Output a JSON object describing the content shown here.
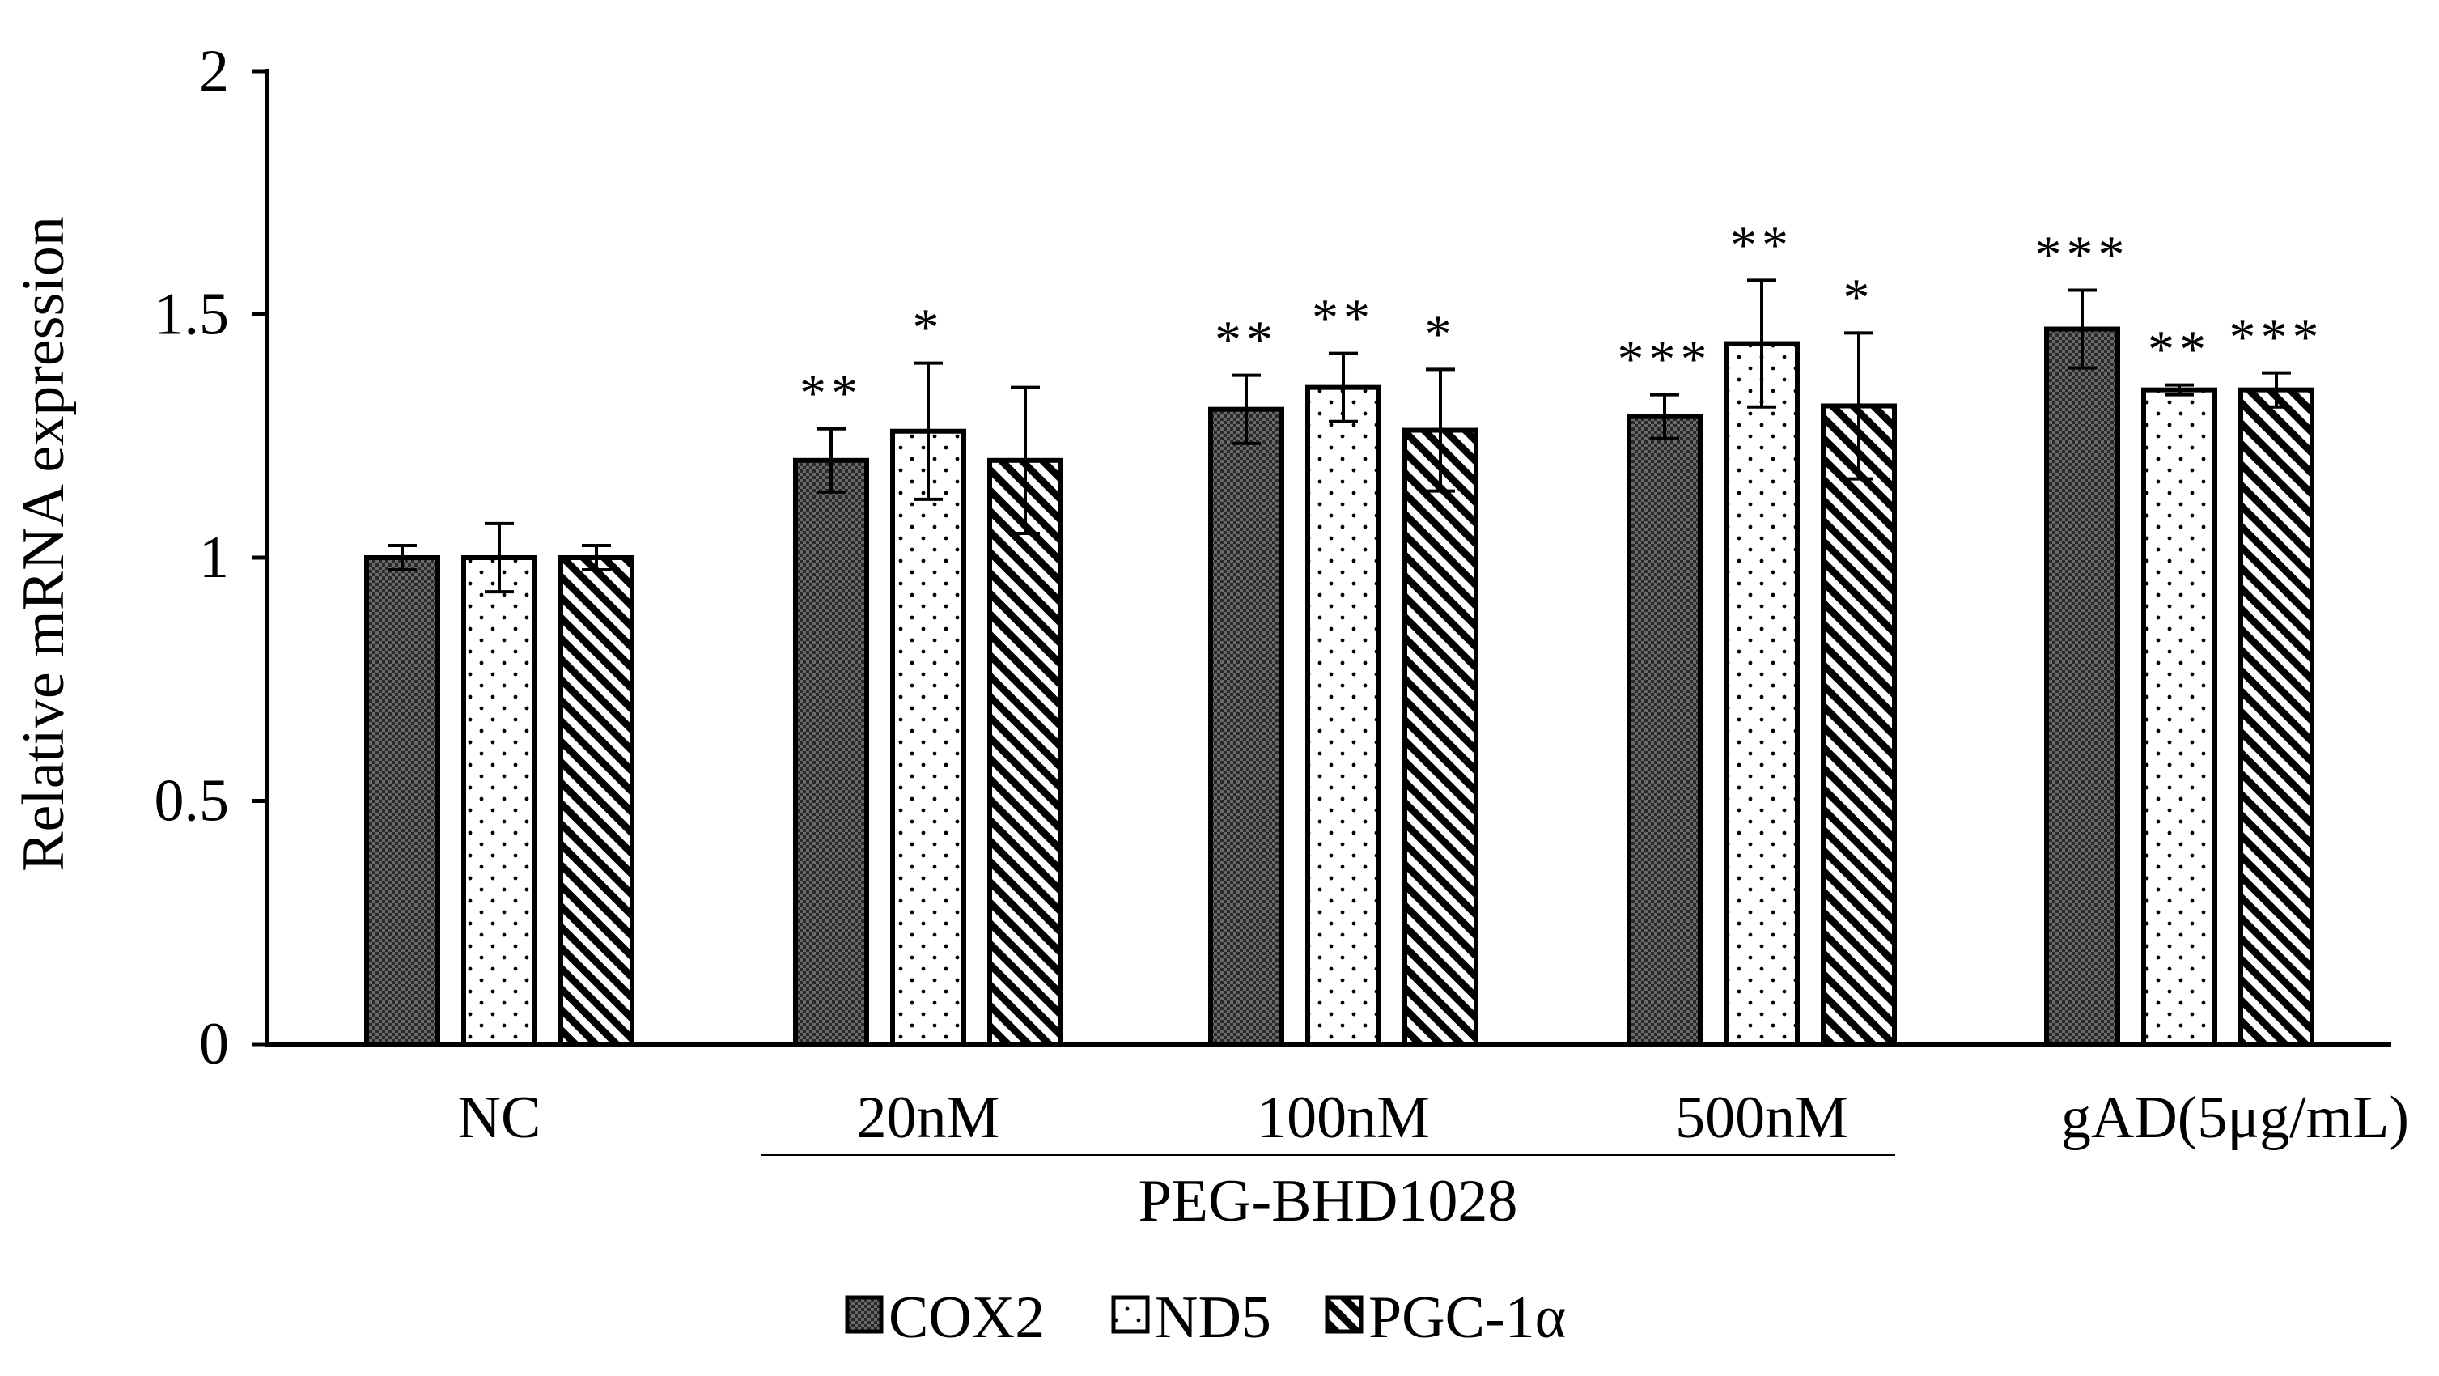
{
  "chart_data": {
    "type": "bar",
    "title": "",
    "xlabel": "",
    "ylabel": "Relative mRNA expression",
    "ylim": [
      0,
      2
    ],
    "yticks": [
      "0",
      "0.5",
      "1",
      "1.5",
      "2"
    ],
    "grid": false,
    "legend_position": "bottom",
    "categories": [
      "NC",
      "20nM",
      "100nM",
      "500nM",
      "gAD(5μg/mL)"
    ],
    "group_label": "PEG-BHD1028",
    "series": [
      {
        "name": "COX2",
        "pattern": "checker",
        "values": [
          1.0,
          1.2,
          1.305,
          1.29,
          1.47
        ],
        "errors": [
          0.025,
          0.065,
          0.07,
          0.045,
          0.08
        ],
        "significance": [
          "",
          "**",
          "**",
          "***",
          "***"
        ]
      },
      {
        "name": "ND5",
        "pattern": "dots",
        "values": [
          1.0,
          1.26,
          1.35,
          1.44,
          1.345
        ],
        "errors": [
          0.07,
          0.14,
          0.07,
          0.13,
          0.01
        ],
        "significance": [
          "",
          "*",
          "**",
          "**",
          "**"
        ]
      },
      {
        "name": "PGC-1α",
        "pattern": "diagonal",
        "values": [
          1.0,
          1.2,
          1.262,
          1.312,
          1.345
        ],
        "errors": [
          0.025,
          0.15,
          0.125,
          0.15,
          0.035
        ],
        "significance": [
          "",
          "",
          "*",
          "*",
          "***"
        ]
      }
    ]
  }
}
